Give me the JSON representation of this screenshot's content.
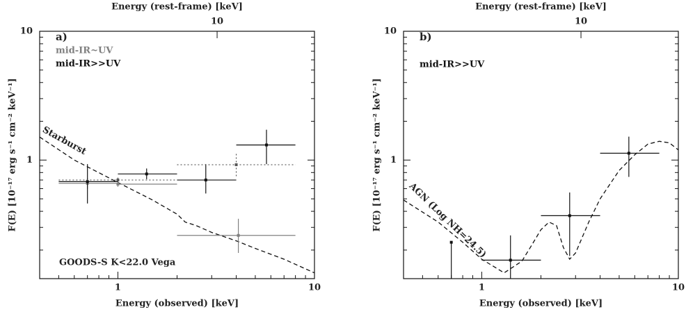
{
  "chart_data": [
    {
      "type": "errorbar",
      "label": "a)",
      "title": "Energy (rest-frame) [keV]",
      "xlabel": "Energy (observed) [keV]",
      "ylabel": "F(E) [10⁻¹⁷ erg s⁻¹ cm⁻² keV⁻¹]",
      "xscale": "log",
      "yscale": "log",
      "xlim": [
        0.4,
        10
      ],
      "ylim": [
        0.12,
        10
      ],
      "xticks": [
        1,
        10
      ],
      "yticks": [
        1,
        10
      ],
      "xminorticks": [
        0.5,
        0.6,
        0.7,
        0.8,
        0.9,
        2,
        3,
        4,
        5,
        6,
        7,
        8,
        9
      ],
      "yminorticks": [
        0.2,
        0.3,
        0.4,
        0.5,
        0.6,
        0.7,
        0.8,
        0.9,
        2,
        3,
        4,
        5,
        6,
        7,
        8,
        9
      ],
      "x2lim": [
        1.25,
        31.3
      ],
      "x2ticks": [
        10
      ],
      "series": [
        {
          "name": "mid-IR~UV",
          "color": "#808080",
          "linestyle": "solid",
          "x": [
            0.7,
            1.0,
            4.1
          ],
          "values": [
            0.66,
            0.65,
            0.26
          ],
          "x_low": [
            0.5,
            1.0,
            2.0
          ],
          "x_high": [
            1.0,
            2.0,
            8.0
          ],
          "y_low": [
            0.6,
            0.62,
            0.19
          ],
          "y_high": [
            0.72,
            0.69,
            0.35
          ]
        },
        {
          "name": "mid-IR>>UV",
          "color": "#111111",
          "linestyle": "solid",
          "x": [
            0.7,
            1.4,
            2.8,
            5.7
          ],
          "values": [
            0.68,
            0.78,
            0.7,
            1.31
          ],
          "x_low": [
            0.5,
            1.0,
            2.0,
            4.0
          ],
          "x_high": [
            1.0,
            2.0,
            4.0,
            8.0
          ],
          "y_low": [
            0.46,
            0.71,
            0.55,
            0.93
          ],
          "y_high": [
            0.93,
            0.86,
            0.93,
            1.72
          ]
        },
        {
          "color": "#555555",
          "linestyle": "dotted",
          "x": [
            1.0,
            4.0
          ],
          "values": [
            0.7,
            0.92
          ],
          "x_low": [
            0.5,
            2.0
          ],
          "x_high": [
            2.0,
            8.0
          ],
          "y_low": [
            0.67,
            0.75
          ],
          "y_high": [
            0.73,
            1.12
          ]
        }
      ],
      "curve": {
        "color": "#111111",
        "linestyle": "dashed",
        "x": [
          0.4,
          0.6,
          1,
          1.5,
          2,
          2.2,
          2.5,
          3,
          4,
          5,
          7,
          10
        ],
        "values": [
          1.51,
          1.0,
          0.67,
          0.49,
          0.38,
          0.33,
          0.31,
          0.274,
          0.236,
          0.206,
          0.17,
          0.133
        ]
      },
      "annotations": [
        "Starburst",
        "GOODS-S K<22.0 Vega"
      ]
    },
    {
      "type": "errorbar",
      "label": "b)",
      "title": "Energy (rest-frame) [keV]",
      "xlabel": "Energy (observed) [keV]",
      "ylabel": "F(E) [10⁻¹⁷ erg s⁻¹ cm⁻² keV⁻¹]",
      "xscale": "log",
      "yscale": "log",
      "xlim": [
        0.4,
        10
      ],
      "ylim": [
        0.12,
        10
      ],
      "xticks": [
        1,
        10
      ],
      "yticks": [
        1,
        10
      ],
      "xminorticks": [
        0.5,
        0.6,
        0.7,
        0.8,
        0.9,
        2,
        3,
        4,
        5,
        6,
        7,
        8,
        9
      ],
      "yminorticks": [
        0.2,
        0.3,
        0.4,
        0.5,
        0.6,
        0.7,
        0.8,
        0.9,
        2,
        3,
        4,
        5,
        6,
        7,
        8,
        9
      ],
      "x2lim": [
        1.25,
        31.3
      ],
      "x2ticks": [
        10
      ],
      "series": [
        {
          "name": "mid-IR>>UV",
          "color": "#111111",
          "linestyle": "solid",
          "x": [
            0.7,
            1.4,
            2.8,
            5.6
          ],
          "values": [
            0.23,
            0.167,
            0.37,
            1.13
          ],
          "x_low": [
            0.7,
            1.0,
            2.0,
            4.0
          ],
          "x_high": [
            0.7,
            2.0,
            4.0,
            8.0
          ],
          "y_low": [
            0.12,
            0.12,
            0.18,
            0.74
          ],
          "y_high": [
            0.23,
            0.26,
            0.56,
            1.52
          ]
        }
      ],
      "curve": {
        "color": "#111111",
        "linestyle": "dashed",
        "x": [
          0.4,
          0.6,
          0.8,
          1.0,
          1.3,
          1.6,
          1.8,
          2.0,
          2.2,
          2.4,
          2.6,
          2.8,
          3.0,
          3.5,
          4,
          5,
          6,
          7,
          8,
          9,
          10
        ],
        "values": [
          0.49,
          0.33,
          0.23,
          0.17,
          0.133,
          0.164,
          0.22,
          0.288,
          0.33,
          0.31,
          0.21,
          0.17,
          0.19,
          0.33,
          0.5,
          0.83,
          1.1,
          1.33,
          1.4,
          1.36,
          1.2
        ]
      },
      "annotations": [
        "AGN (Log NH=24.5)"
      ]
    }
  ]
}
